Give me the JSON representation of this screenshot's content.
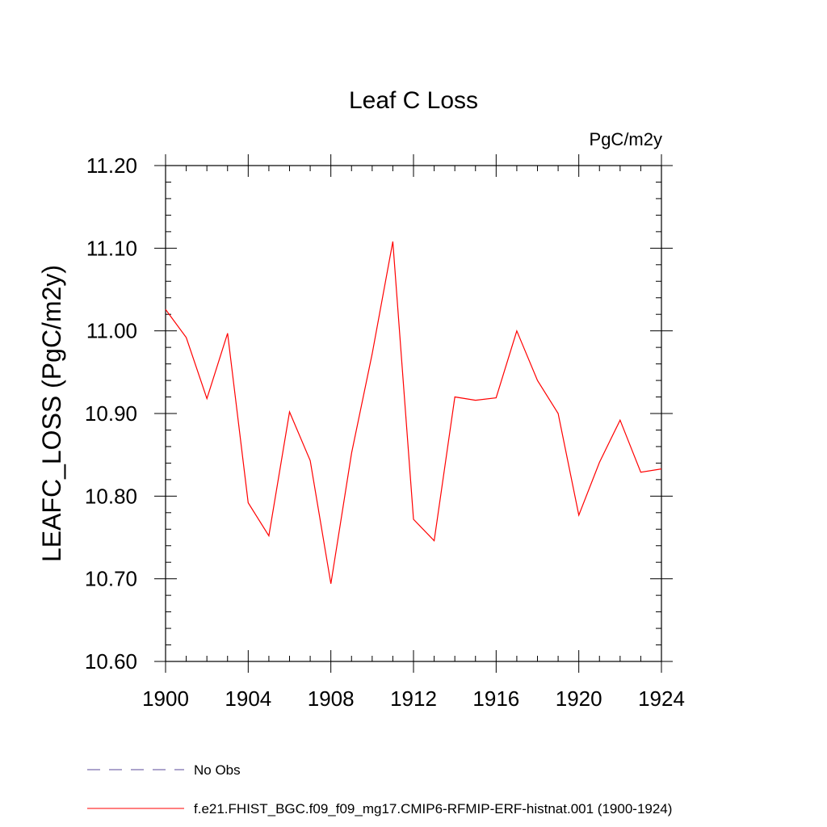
{
  "chart_data": {
    "type": "line",
    "title": "Leaf C Loss",
    "units_label": "PgC/m2y",
    "xlabel": "",
    "ylabel": "LEAFC_LOSS  (PgC/m2y)",
    "xlim": [
      1900,
      1924
    ],
    "ylim": [
      10.6,
      11.2
    ],
    "x_ticks": [
      1900,
      1904,
      1908,
      1912,
      1916,
      1920,
      1924
    ],
    "x_tick_labels": [
      "1900",
      "1904",
      "1908",
      "1912",
      "1916",
      "1920",
      "1924"
    ],
    "y_ticks": [
      10.6,
      10.7,
      10.8,
      10.9,
      11.0,
      11.1,
      11.2
    ],
    "y_tick_labels": [
      "10.60",
      "10.70",
      "10.80",
      "10.90",
      "11.00",
      "11.10",
      "11.20"
    ],
    "grid": false,
    "legend_position": "bottom",
    "series": [
      {
        "name": "f.e21.FHIST_BGC.f09_f09_mg17.CMIP6-RFMIP-ERF-histnat.001 (1900-1924)",
        "color": "#ff0000",
        "dash": "solid",
        "x": [
          1900,
          1901,
          1902,
          1903,
          1904,
          1905,
          1906,
          1907,
          1908,
          1909,
          1910,
          1911,
          1912,
          1913,
          1914,
          1915,
          1916,
          1917,
          1918,
          1919,
          1920,
          1921,
          1922,
          1923,
          1924
        ],
        "values": [
          11.026,
          10.992,
          10.918,
          10.997,
          10.792,
          10.752,
          10.902,
          10.843,
          10.694,
          10.852,
          10.972,
          11.108,
          10.772,
          10.746,
          10.92,
          10.916,
          10.919,
          11.0,
          10.94,
          10.9,
          10.777,
          10.841,
          10.892,
          10.829,
          10.833
        ]
      }
    ],
    "legend": [
      {
        "label": "No Obs",
        "color": "#5a4a9a",
        "dash": "dashed"
      },
      {
        "label": "f.e21.FHIST_BGC.f09_f09_mg17.CMIP6-RFMIP-ERF-histnat.001 (1900-1924)",
        "color": "#ff0000",
        "dash": "solid"
      }
    ]
  }
}
